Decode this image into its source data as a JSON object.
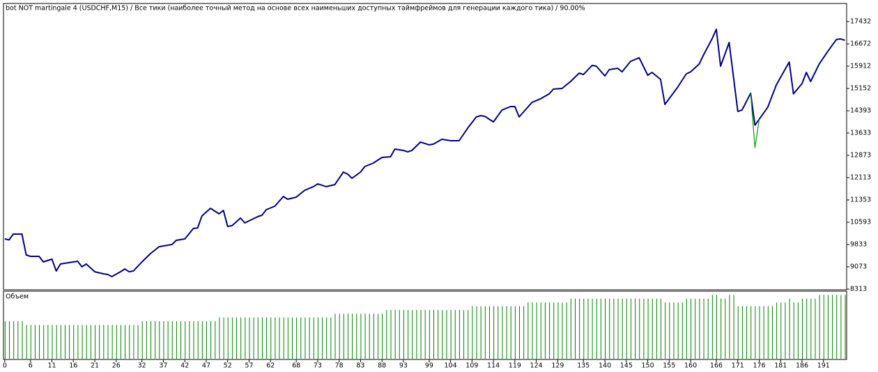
{
  "chart_data": [
    {
      "type": "line",
      "title": "bot NOT martingale 4 (USDCHF,M15) / Все тики (наиболее точный метод на основе всех наименьших доступных таймфреймов для генерации каждого тика) / 90.00%",
      "xlim": [
        -0.3,
        196.4
      ],
      "ylim": [
        8313,
        18049
      ],
      "yticks": [
        8313,
        9073,
        9833,
        10593,
        11353,
        12113,
        12873,
        13633,
        14393,
        15152,
        15912,
        16672,
        17432
      ],
      "series": [
        {
          "color": "#000080",
          "x": [
            0,
            1,
            2,
            4,
            5,
            6,
            8,
            9,
            11,
            12,
            13,
            15,
            17,
            18,
            19,
            21,
            23,
            24,
            25,
            27,
            28,
            29,
            30,
            32,
            34,
            36,
            39,
            40,
            42,
            44,
            45,
            46,
            48,
            50,
            51,
            52,
            53,
            55,
            56,
            59,
            60,
            61,
            63,
            65,
            66,
            68,
            70,
            72,
            73,
            75,
            77,
            79,
            80,
            81,
            83,
            84,
            86,
            88,
            90,
            91,
            93,
            94,
            95,
            97,
            99,
            100,
            102,
            104,
            106,
            108,
            110,
            111,
            112,
            114,
            116,
            118,
            119,
            120,
            123,
            125,
            127,
            128,
            130,
            132,
            134,
            135,
            137,
            138,
            140,
            141,
            143,
            144,
            146,
            148,
            150,
            151,
            153,
            154,
            157,
            159,
            160,
            162,
            163,
            165,
            166,
            167,
            169,
            171,
            172,
            174,
            175,
            178,
            180,
            183,
            184,
            186,
            187,
            188,
            190,
            192,
            194,
            195,
            196
          ],
          "values": [
            10023,
            9990,
            10190,
            10190,
            9477,
            9430,
            9430,
            9240,
            9335,
            8930,
            9170,
            9215,
            9263,
            9073,
            9170,
            8905,
            8835,
            8812,
            8740,
            8905,
            9000,
            8905,
            8930,
            9240,
            9525,
            9760,
            9833,
            9975,
            10023,
            10380,
            10400,
            10807,
            11068,
            10878,
            10997,
            10450,
            10475,
            10735,
            10570,
            10783,
            10830,
            11020,
            11140,
            11472,
            11377,
            11448,
            11685,
            11805,
            11900,
            11805,
            11875,
            12303,
            12230,
            12090,
            12303,
            12493,
            12610,
            12800,
            12825,
            13087,
            13040,
            12990,
            13040,
            13325,
            13230,
            13255,
            13420,
            13370,
            13370,
            13800,
            14180,
            14226,
            14203,
            14013,
            14418,
            14535,
            14535,
            14180,
            14680,
            14800,
            14966,
            15130,
            15153,
            15390,
            15675,
            15627,
            15937,
            15913,
            15580,
            15794,
            15840,
            15720,
            16077,
            16200,
            15603,
            15700,
            15460,
            14607,
            15200,
            15650,
            15720,
            15985,
            16290,
            16840,
            17170,
            15913,
            16720,
            14370,
            14418,
            14990,
            13897,
            14512,
            15272,
            16055,
            14966,
            15320,
            15700,
            15390,
            15985,
            16415,
            16818,
            16840,
            16795
          ]
        },
        {
          "color": "#00a000",
          "x": [
            174,
            175,
            176
          ],
          "values": [
            14990,
            13130,
            14100
          ]
        }
      ]
    },
    {
      "type": "bar",
      "title": "Объем",
      "color": "#008000",
      "xlim": [
        -0.3,
        196.4
      ],
      "ylim": [
        0,
        0.18
      ],
      "xticks": [
        0,
        6,
        11,
        16,
        21,
        26,
        32,
        37,
        42,
        47,
        52,
        57,
        62,
        68,
        73,
        78,
        83,
        88,
        93,
        99,
        104,
        109,
        114,
        119,
        124,
        129,
        135,
        140,
        145,
        150,
        155,
        160,
        166,
        171,
        176,
        181,
        186,
        191
      ],
      "x": [
        0,
        1,
        2,
        3,
        4,
        5,
        6,
        7,
        8,
        9,
        10,
        11,
        12,
        13,
        14,
        15,
        16,
        17,
        18,
        19,
        20,
        21,
        22,
        23,
        24,
        25,
        26,
        27,
        28,
        29,
        30,
        31,
        32,
        33,
        34,
        35,
        36,
        37,
        38,
        39,
        40,
        41,
        42,
        43,
        44,
        45,
        46,
        47,
        48,
        49,
        50,
        51,
        52,
        53,
        54,
        55,
        56,
        57,
        58,
        59,
        60,
        61,
        62,
        63,
        64,
        65,
        66,
        67,
        68,
        69,
        70,
        71,
        72,
        73,
        74,
        75,
        76,
        77,
        78,
        79,
        80,
        81,
        82,
        83,
        84,
        85,
        86,
        87,
        88,
        89,
        90,
        91,
        92,
        93,
        94,
        95,
        96,
        97,
        98,
        99,
        100,
        101,
        102,
        103,
        104,
        105,
        106,
        107,
        108,
        109,
        110,
        111,
        112,
        113,
        114,
        115,
        116,
        117,
        118,
        119,
        120,
        121,
        122,
        123,
        124,
        125,
        126,
        127,
        128,
        129,
        130,
        131,
        132,
        133,
        134,
        135,
        136,
        137,
        138,
        139,
        140,
        141,
        142,
        143,
        144,
        145,
        146,
        147,
        148,
        149,
        150,
        151,
        152,
        153,
        154,
        155,
        156,
        157,
        158,
        159,
        160,
        161,
        162,
        163,
        164,
        165,
        166,
        167,
        168,
        169,
        170,
        171,
        172,
        173,
        174,
        175,
        176,
        177,
        178,
        179,
        180,
        181,
        182,
        183,
        184,
        185,
        186,
        187,
        188,
        189,
        190,
        191,
        192,
        193,
        194,
        195,
        196
      ],
      "values": [
        0.1,
        0.1,
        0.1,
        0.1,
        0.1,
        0.09,
        0.09,
        0.09,
        0.09,
        0.09,
        0.09,
        0.09,
        0.09,
        0.09,
        0.09,
        0.09,
        0.09,
        0.09,
        0.09,
        0.09,
        0.09,
        0.09,
        0.09,
        0.09,
        0.09,
        0.09,
        0.09,
        0.09,
        0.09,
        0.09,
        0.09,
        0.09,
        0.1,
        0.1,
        0.1,
        0.1,
        0.1,
        0.1,
        0.1,
        0.1,
        0.1,
        0.1,
        0.1,
        0.1,
        0.1,
        0.1,
        0.1,
        0.1,
        0.1,
        0.1,
        0.11,
        0.11,
        0.11,
        0.11,
        0.11,
        0.11,
        0.11,
        0.11,
        0.11,
        0.11,
        0.11,
        0.11,
        0.11,
        0.11,
        0.11,
        0.11,
        0.11,
        0.11,
        0.11,
        0.11,
        0.11,
        0.11,
        0.11,
        0.11,
        0.11,
        0.11,
        0.11,
        0.12,
        0.12,
        0.12,
        0.12,
        0.12,
        0.12,
        0.12,
        0.12,
        0.12,
        0.12,
        0.12,
        0.12,
        0.13,
        0.13,
        0.13,
        0.13,
        0.13,
        0.13,
        0.13,
        0.13,
        0.13,
        0.13,
        0.13,
        0.13,
        0.13,
        0.13,
        0.13,
        0.13,
        0.13,
        0.13,
        0.13,
        0.13,
        0.14,
        0.14,
        0.14,
        0.14,
        0.14,
        0.14,
        0.14,
        0.14,
        0.14,
        0.14,
        0.14,
        0.14,
        0.14,
        0.15,
        0.15,
        0.15,
        0.15,
        0.15,
        0.15,
        0.15,
        0.15,
        0.15,
        0.15,
        0.16,
        0.16,
        0.16,
        0.16,
        0.16,
        0.16,
        0.16,
        0.16,
        0.16,
        0.16,
        0.16,
        0.16,
        0.16,
        0.16,
        0.16,
        0.16,
        0.16,
        0.16,
        0.16,
        0.16,
        0.16,
        0.16,
        0.15,
        0.15,
        0.15,
        0.15,
        0.15,
        0.16,
        0.16,
        0.16,
        0.16,
        0.16,
        0.16,
        0.17,
        0.17,
        0.16,
        0.16,
        0.17,
        0.17,
        0.14,
        0.14,
        0.14,
        0.14,
        0.14,
        0.14,
        0.14,
        0.14,
        0.14,
        0.15,
        0.15,
        0.15,
        0.16,
        0.15,
        0.15,
        0.16,
        0.16,
        0.16,
        0.16,
        0.17,
        0.17,
        0.17,
        0.17,
        0.17,
        0.17,
        0.17
      ]
    }
  ]
}
